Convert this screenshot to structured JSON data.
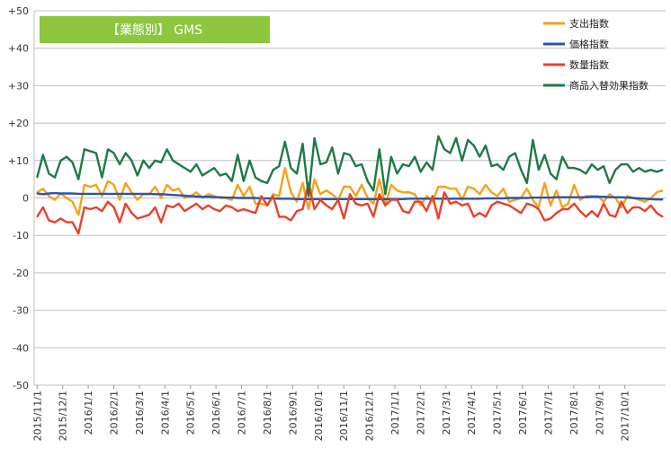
{
  "chart_data": {
    "type": "line",
    "title": "【業態別】 GMS",
    "title_bg": "#8dc63f",
    "ylim": [
      -50,
      50
    ],
    "yticks": [
      50,
      40,
      30,
      20,
      10,
      0,
      -10,
      -20,
      -30,
      -40,
      -50
    ],
    "ytick_labels": [
      "+50",
      "+40",
      "+30",
      "+20",
      "+10",
      "0",
      "-10",
      "-20",
      "-30",
      "-40",
      "-50"
    ],
    "xtick_labels": [
      "2015/11/1",
      "2015/12/1",
      "2016/1/1",
      "2016/2/1",
      "2016/3/1",
      "2016/4/1",
      "2016/5/1",
      "2016/6/1",
      "2016/7/1",
      "2016/8/1",
      "2016/9/1",
      "2016/10/1",
      "2016/11/1",
      "2016/12/1",
      "2017/1/1",
      "2017/2/1",
      "2017/3/1",
      "2017/4/1",
      "2017/5/1",
      "2017/6/1",
      "2017/7/1",
      "2017/8/1",
      "2017/9/1",
      "2017/10/1"
    ],
    "points_per_month": 4.33,
    "grid": true,
    "legend_position": "top-right",
    "series": [
      {
        "name": "支出指数",
        "color": "#f7a11a",
        "values": [
          1.5,
          2.5,
          0.5,
          -0.5,
          1.2,
          0.0,
          -1.0,
          -4.5,
          3.5,
          3.0,
          3.5,
          0.5,
          4.5,
          3.5,
          -0.5,
          4.0,
          1.5,
          -0.5,
          1.0,
          1.0,
          3.0,
          0.0,
          3.5,
          2.0,
          2.5,
          0.0,
          0.5,
          1.5,
          0.0,
          1.0,
          0.5,
          0.0,
          0.0,
          -0.5,
          3.5,
          0.5,
          3.0,
          -1.5,
          -1.5,
          -2.0,
          1.0,
          0.5,
          8.0,
          1.5,
          -1.0,
          4.0,
          -3.0,
          5.0,
          1.0,
          2.0,
          1.0,
          -0.5,
          3.0,
          3.0,
          0.5,
          3.5,
          0.0,
          -1.5,
          5.0,
          -2.0,
          3.5,
          2.0,
          1.5,
          1.5,
          1.0,
          -2.0,
          0.5,
          -1.0,
          3.0,
          3.0,
          2.5,
          2.5,
          -0.5,
          3.0,
          2.5,
          1.0,
          3.5,
          1.5,
          0.5,
          2.5,
          -1.0,
          -0.5,
          0.0,
          2.5,
          -0.5,
          -2.5,
          4.0,
          -2.0,
          2.0,
          -2.5,
          -1.5,
          3.5,
          -0.5,
          0.5,
          0.5,
          0.5,
          -1.0,
          1.0,
          0.0,
          -2.5,
          0.5,
          0.0,
          -0.5,
          -1.0,
          0.0,
          1.5,
          2.0
        ]
      },
      {
        "name": "価格指数",
        "color": "#2b55a8",
        "values": [
          1.2,
          1.0,
          1.2,
          1.3,
          1.2,
          1.2,
          1.2,
          1.1,
          1.1,
          1.1,
          1.1,
          1.1,
          1.1,
          1.1,
          1.1,
          1.1,
          1.1,
          1.1,
          1.1,
          1.1,
          1.0,
          1.0,
          0.9,
          0.8,
          0.7,
          0.6,
          0.5,
          0.4,
          0.3,
          0.3,
          0.2,
          0.2,
          0.1,
          0.1,
          0.0,
          0.0,
          0.0,
          0.0,
          -0.1,
          -0.1,
          -0.1,
          -0.2,
          -0.2,
          -0.2,
          -0.3,
          -0.3,
          -0.3,
          -0.3,
          -0.3,
          -0.3,
          -0.3,
          -0.3,
          -0.3,
          -0.3,
          -0.3,
          -0.3,
          -0.3,
          -0.3,
          -0.3,
          -0.3,
          -0.3,
          -0.3,
          -0.3,
          -0.2,
          -0.2,
          -0.2,
          -0.2,
          -0.2,
          -0.2,
          -0.2,
          -0.2,
          -0.2,
          -0.2,
          -0.2,
          -0.2,
          -0.2,
          -0.1,
          -0.1,
          -0.1,
          -0.1,
          0.0,
          0.0,
          0.0,
          0.0,
          0.1,
          0.1,
          0.1,
          0.1,
          0.2,
          0.2,
          0.2,
          0.2,
          0.2,
          0.2,
          0.3,
          0.3,
          0.3,
          0.2,
          0.2,
          0.2,
          0.1,
          0.0,
          -0.1,
          -0.2,
          -0.3,
          -0.4,
          -0.4
        ]
      },
      {
        "name": "数量指数",
        "color": "#e8412c",
        "values": [
          -5.0,
          -2.5,
          -6.0,
          -6.5,
          -5.5,
          -6.5,
          -6.5,
          -9.5,
          -2.5,
          -3.0,
          -2.5,
          -3.5,
          -1.0,
          -2.5,
          -6.5,
          -1.5,
          -4.0,
          -5.5,
          -5.0,
          -4.5,
          -2.5,
          -6.5,
          -2.0,
          -2.5,
          -1.5,
          -3.5,
          -2.5,
          -1.5,
          -3.0,
          -2.0,
          -3.0,
          -3.5,
          -2.0,
          -2.5,
          -3.5,
          -3.0,
          -3.5,
          -4.0,
          0.5,
          -2.0,
          0.5,
          -5.0,
          -5.0,
          -6.0,
          -3.5,
          -3.0,
          4.0,
          -3.0,
          -0.5,
          -2.0,
          -3.0,
          -0.5,
          -5.5,
          1.0,
          -1.5,
          -2.0,
          -1.5,
          -5.0,
          1.0,
          -2.0,
          -0.5,
          -0.5,
          -3.5,
          -4.0,
          -1.0,
          -1.0,
          -3.5,
          0.5,
          -5.5,
          1.5,
          -1.5,
          -1.0,
          -2.0,
          -1.5,
          -5.0,
          -4.0,
          -5.0,
          -2.0,
          -1.0,
          -1.5,
          -2.0,
          -3.0,
          -4.0,
          -1.5,
          -2.0,
          -3.0,
          -6.0,
          -5.5,
          -4.0,
          -3.0,
          -3.0,
          -1.5,
          -3.5,
          -5.0,
          -3.5,
          -5.0,
          -1.5,
          -4.5,
          -5.0,
          -1.0,
          -4.0,
          -2.5,
          -2.5,
          -3.5,
          -2.0,
          -4.0,
          -5.0
        ]
      },
      {
        "name": "商品入替効果指数",
        "color": "#1e7a47",
        "values": [
          5.5,
          11.5,
          6.5,
          5.5,
          10.0,
          11.0,
          9.5,
          5.0,
          13.0,
          12.5,
          12.0,
          5.5,
          13.0,
          12.0,
          9.0,
          12.0,
          10.0,
          6.0,
          10.0,
          8.0,
          10.0,
          9.5,
          13.0,
          10.0,
          9.0,
          8.0,
          7.0,
          9.0,
          6.0,
          7.0,
          8.0,
          6.0,
          6.5,
          4.5,
          11.5,
          4.5,
          10.0,
          5.5,
          4.5,
          4.0,
          7.5,
          8.5,
          15.0,
          8.0,
          6.5,
          14.5,
          0.5,
          16.0,
          9.0,
          9.5,
          13.5,
          6.5,
          12.0,
          11.5,
          8.5,
          9.0,
          4.5,
          2.0,
          13.0,
          1.0,
          11.0,
          6.5,
          9.0,
          8.5,
          11.0,
          7.0,
          9.5,
          7.5,
          16.5,
          13.0,
          12.0,
          16.0,
          10.0,
          15.5,
          14.0,
          11.0,
          14.0,
          8.5,
          9.0,
          7.5,
          11.0,
          12.0,
          7.5,
          4.0,
          15.5,
          7.5,
          11.5,
          6.5,
          5.0,
          11.0,
          8.0,
          8.0,
          7.5,
          6.5,
          9.0,
          7.5,
          8.5,
          4.0,
          7.5,
          9.0,
          9.0,
          7.0,
          8.0,
          7.0,
          7.5,
          7.0,
          7.5
        ]
      }
    ]
  }
}
